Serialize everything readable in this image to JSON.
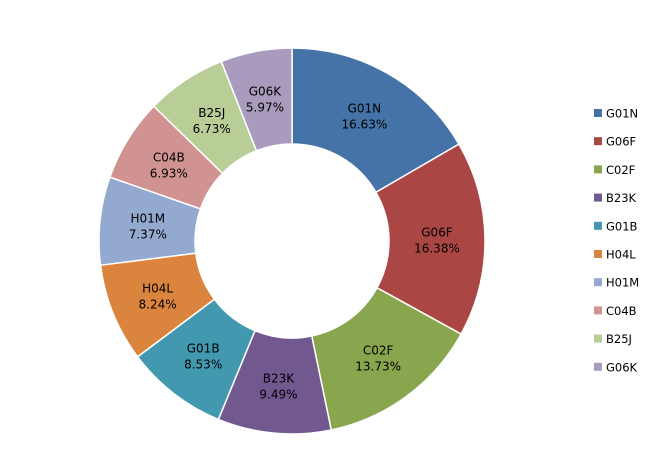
{
  "chart_data": {
    "type": "pie",
    "donut": true,
    "legend_position": "right",
    "categories": [
      "G01N",
      "G06F",
      "C02F",
      "B23K",
      "G01B",
      "H04L",
      "H01M",
      "C04B",
      "B25J",
      "G06K"
    ],
    "values": [
      16.63,
      16.38,
      13.73,
      9.49,
      8.53,
      8.24,
      7.37,
      6.93,
      6.73,
      5.97
    ],
    "value_labels": [
      "16.63%",
      "16.38%",
      "13.73%",
      "9.49%",
      "8.53%",
      "8.24%",
      "7.37%",
      "6.93%",
      "6.73%",
      "5.97%"
    ],
    "colors": [
      "#4572A7",
      "#AA4643",
      "#89A54E",
      "#71588F",
      "#4198AF",
      "#DB843D",
      "#93A9CF",
      "#D19392",
      "#B9CD96",
      "#A99BBD"
    ]
  }
}
